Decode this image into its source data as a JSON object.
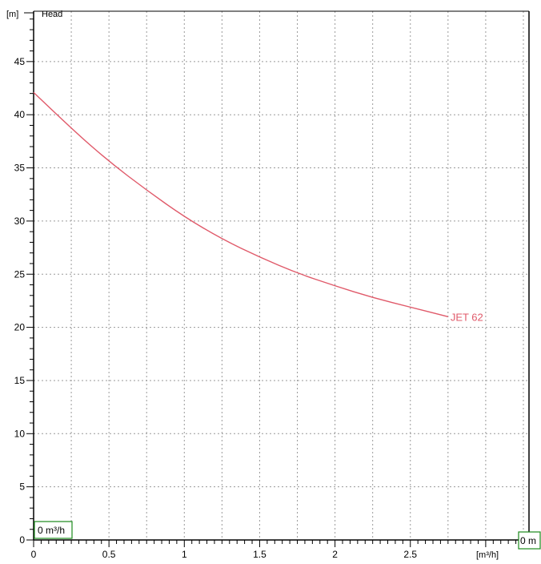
{
  "chart_data": {
    "type": "line",
    "title": "",
    "ylabel": "Head",
    "yunit": "[m]",
    "xunit": "[m³/h]",
    "xlim": [
      0,
      3.3
    ],
    "ylim": [
      0,
      50
    ],
    "x_ticks": [
      0,
      0.5,
      1,
      1.5,
      2,
      2.5
    ],
    "x_tick_labels": [
      "0",
      "0.5",
      "1",
      "1.5",
      "2",
      "2.5"
    ],
    "y_ticks": [
      0,
      5,
      10,
      15,
      20,
      25,
      30,
      35,
      40,
      45
    ],
    "y_tick_labels": [
      "0",
      "5",
      "10",
      "15",
      "20",
      "25",
      "30",
      "35",
      "40",
      "45"
    ],
    "grid": true,
    "series": [
      {
        "name": "JET 62",
        "color": "#e05a6a",
        "x": [
          0,
          0.25,
          0.5,
          0.75,
          1.0,
          1.25,
          1.5,
          1.75,
          2.0,
          2.25,
          2.5,
          2.75
        ],
        "y": [
          42.1,
          38.7,
          35.6,
          32.9,
          30.4,
          28.3,
          26.6,
          25.1,
          23.9,
          22.8,
          21.9,
          21.0
        ]
      }
    ],
    "origin_x_box": "0 m³/h",
    "origin_y_box": "0 m"
  }
}
